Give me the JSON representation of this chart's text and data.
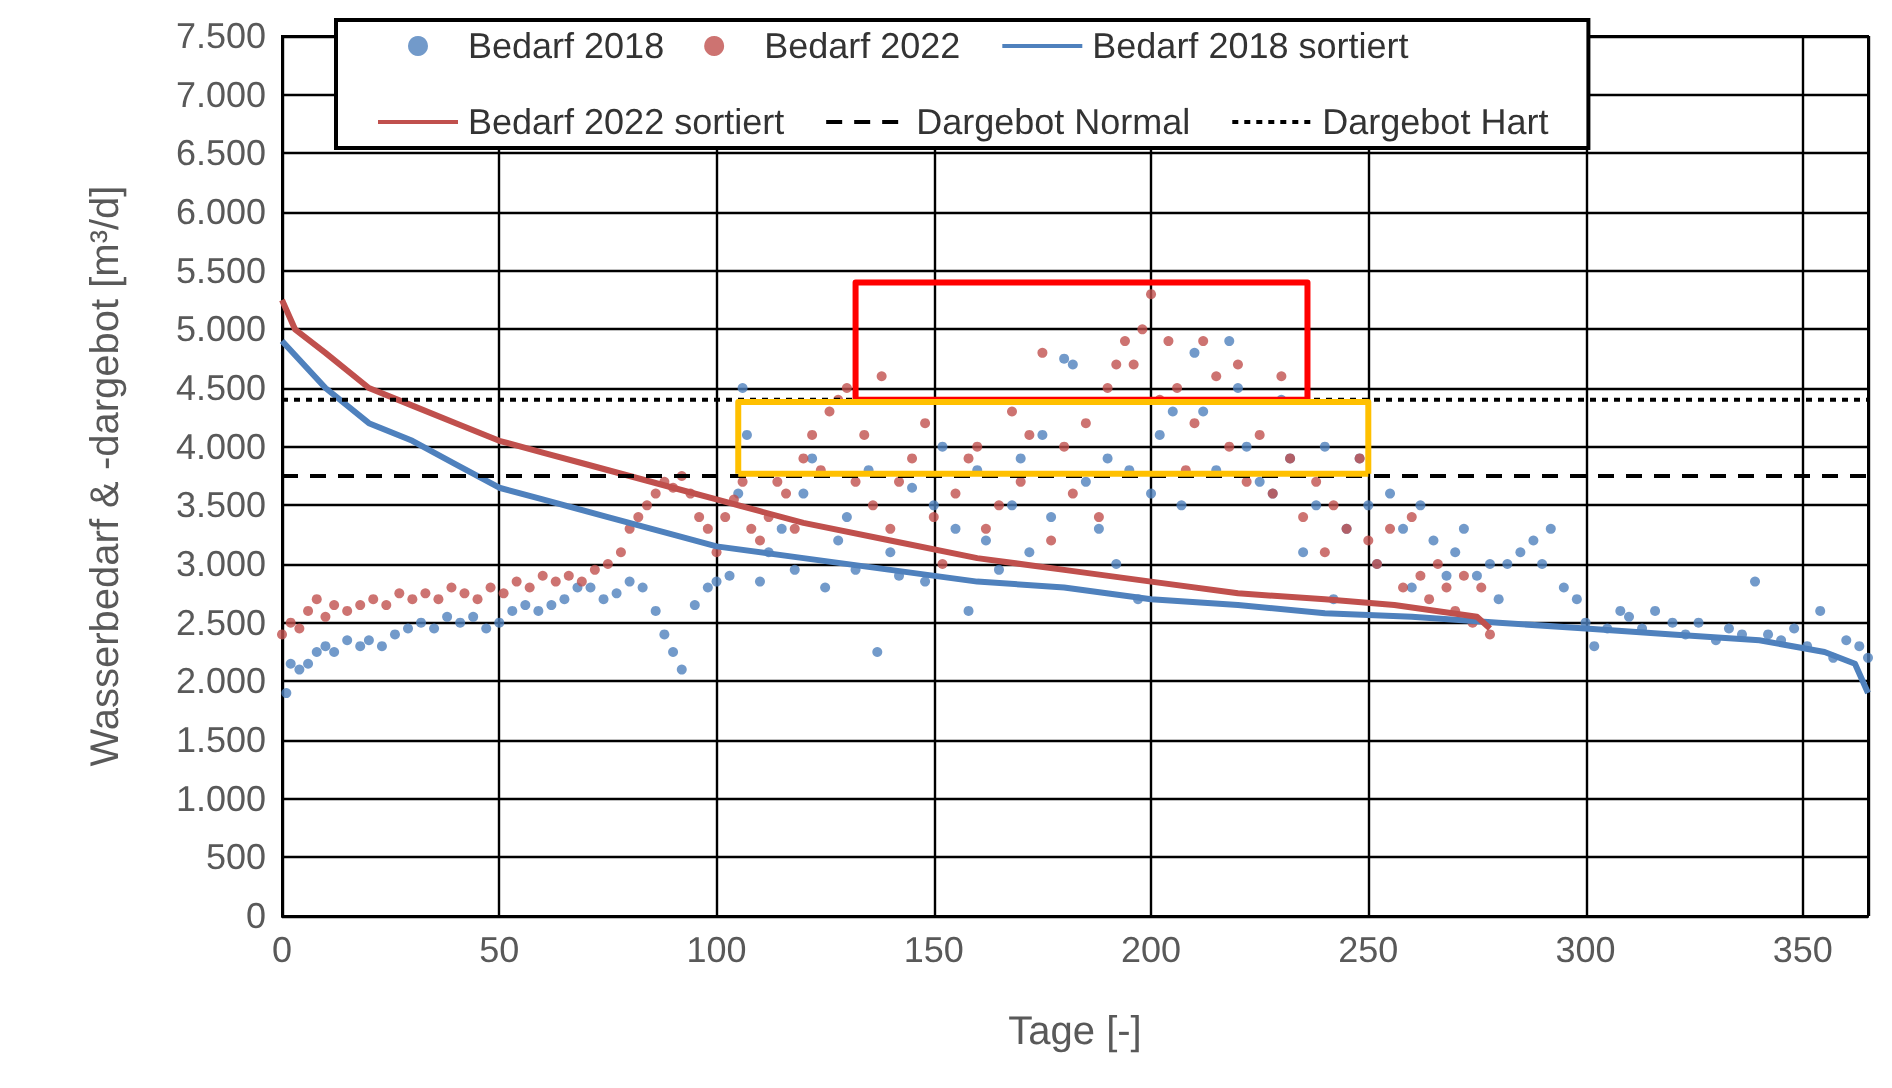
{
  "chart_data": {
    "type": "scatter",
    "xlabel": "Tage [-]",
    "ylabel": "Wasserbedarf & -dargebot [m³/d]",
    "xlim": [
      0,
      365
    ],
    "xticks": [
      0,
      50,
      100,
      150,
      200,
      250,
      300,
      350
    ],
    "ylim": [
      0,
      7500
    ],
    "yticks": [
      0,
      500,
      {
        "value": 1000,
        "label": "1.000"
      },
      {
        "value": 1500,
        "label": "1.500"
      },
      {
        "value": 2000,
        "label": "2.000"
      },
      {
        "value": 2500,
        "label": "2.500"
      },
      {
        "value": 3000,
        "label": "3.000"
      },
      {
        "value": 3500,
        "label": "3.500"
      },
      {
        "value": 4000,
        "label": "4.000"
      },
      {
        "value": 4500,
        "label": "4.500"
      },
      {
        "value": 5000,
        "label": "5.000"
      },
      {
        "value": 5500,
        "label": "5.500"
      },
      {
        "value": 6000,
        "label": "6.000"
      },
      {
        "value": 6500,
        "label": "6.500"
      },
      {
        "value": 7000,
        "label": "7.000"
      },
      {
        "value": 7500,
        "label": "7.500"
      }
    ],
    "grid": true,
    "legend": "top",
    "series": [
      {
        "name": "Bedarf 2018",
        "marker": "circle",
        "color": "#4f81bd",
        "x": [
          1,
          2,
          4,
          6,
          8,
          10,
          12,
          15,
          18,
          20,
          23,
          26,
          29,
          32,
          35,
          38,
          41,
          44,
          47,
          50,
          53,
          56,
          59,
          62,
          65,
          68,
          71,
          74,
          77,
          80,
          83,
          86,
          88,
          90,
          92,
          95,
          98,
          100,
          103,
          105,
          106,
          107,
          110,
          112,
          115,
          118,
          120,
          122,
          125,
          128,
          130,
          132,
          135,
          137,
          140,
          142,
          145,
          148,
          150,
          152,
          155,
          158,
          160,
          162,
          165,
          168,
          170,
          172,
          175,
          177,
          180,
          182,
          185,
          188,
          190,
          192,
          195,
          197,
          200,
          202,
          205,
          207,
          210,
          212,
          215,
          218,
          220,
          222,
          225,
          228,
          230,
          232,
          235,
          238,
          240,
          242,
          245,
          248,
          250,
          252,
          255,
          258,
          260,
          262,
          265,
          268,
          270,
          272,
          275,
          278,
          280,
          282,
          285,
          288,
          290,
          292,
          295,
          298,
          300,
          302,
          305,
          308,
          310,
          313,
          316,
          320,
          323,
          326,
          330,
          333,
          336,
          339,
          342,
          345,
          348,
          351,
          354,
          357,
          360,
          363,
          365
        ],
        "values": [
          1900,
          2150,
          2100,
          2150,
          2250,
          2300,
          2250,
          2350,
          2300,
          2350,
          2300,
          2400,
          2450,
          2500,
          2450,
          2550,
          2500,
          2550,
          2450,
          2500,
          2600,
          2650,
          2600,
          2650,
          2700,
          2800,
          2800,
          2700,
          2750,
          2850,
          2800,
          2600,
          2400,
          2250,
          2100,
          2650,
          2800,
          2850,
          2900,
          3600,
          4500,
          4100,
          2850,
          3100,
          3300,
          2950,
          3600,
          3900,
          2800,
          3200,
          3400,
          2950,
          3800,
          2250,
          3100,
          2900,
          3650,
          2850,
          3500,
          4000,
          3300,
          2600,
          3800,
          3200,
          2950,
          3500,
          3900,
          3100,
          4100,
          3400,
          4750,
          4700,
          3700,
          3300,
          3900,
          3000,
          3800,
          2700,
          3600,
          4100,
          4300,
          3500,
          4800,
          4300,
          3800,
          4900,
          4500,
          4000,
          3700,
          3600,
          4400,
          3900,
          3100,
          3500,
          4000,
          2700,
          3300,
          3900,
          3500,
          3000,
          3600,
          3300,
          2800,
          3500,
          3200,
          2900,
          3100,
          3300,
          2900,
          3000,
          2700,
          3000,
          3100,
          3200,
          3000,
          3300,
          2800,
          2700,
          2500,
          2300,
          2450,
          2600,
          2550,
          2450,
          2600,
          2500,
          2400,
          2500,
          2350,
          2450,
          2400,
          2850,
          2400,
          2350,
          2450,
          2300,
          2600,
          2200,
          2350,
          2300,
          2200
        ]
      },
      {
        "name": "Bedarf 2022",
        "marker": "circle",
        "color": "#c0504d",
        "x": [
          0,
          2,
          4,
          6,
          8,
          10,
          12,
          15,
          18,
          21,
          24,
          27,
          30,
          33,
          36,
          39,
          42,
          45,
          48,
          51,
          54,
          57,
          60,
          63,
          66,
          69,
          72,
          75,
          78,
          80,
          82,
          84,
          86,
          88,
          90,
          92,
          94,
          96,
          98,
          100,
          102,
          104,
          106,
          108,
          110,
          112,
          114,
          116,
          118,
          120,
          122,
          124,
          126,
          128,
          130,
          132,
          134,
          136,
          138,
          140,
          142,
          145,
          148,
          150,
          152,
          155,
          158,
          160,
          162,
          165,
          168,
          170,
          172,
          175,
          177,
          180,
          182,
          185,
          188,
          190,
          192,
          194,
          196,
          198,
          200,
          202,
          204,
          206,
          208,
          210,
          212,
          215,
          218,
          220,
          222,
          225,
          228,
          230,
          232,
          235,
          238,
          240,
          242,
          245,
          248,
          250,
          252,
          255,
          258,
          260,
          262,
          264,
          266,
          268,
          270,
          272,
          274,
          276,
          278
        ],
        "values": [
          2400,
          2500,
          2450,
          2600,
          2700,
          2550,
          2650,
          2600,
          2650,
          2700,
          2650,
          2750,
          2700,
          2750,
          2700,
          2800,
          2750,
          2700,
          2800,
          2750,
          2850,
          2800,
          2900,
          2850,
          2900,
          2850,
          2950,
          3000,
          3100,
          3300,
          3400,
          3500,
          3600,
          3700,
          3650,
          3750,
          3600,
          3400,
          3300,
          3100,
          3400,
          3550,
          3700,
          3300,
          3200,
          3400,
          3700,
          3600,
          3300,
          3900,
          4100,
          3800,
          4300,
          4400,
          4500,
          3700,
          4100,
          3500,
          4600,
          3300,
          3700,
          3900,
          4200,
          3400,
          3000,
          3600,
          3900,
          4000,
          3300,
          3500,
          4300,
          3700,
          4100,
          4800,
          3200,
          4000,
          3600,
          4200,
          3400,
          4500,
          4700,
          4900,
          4700,
          5000,
          5300,
          4400,
          4900,
          4500,
          3800,
          4200,
          4900,
          4600,
          4000,
          4700,
          3700,
          4100,
          3600,
          4600,
          3900,
          3400,
          3700,
          3100,
          3500,
          3300,
          3900,
          3200,
          3000,
          3300,
          2800,
          3400,
          2900,
          2700,
          3000,
          2800,
          2600,
          2900,
          2500,
          2800,
          2400
        ]
      },
      {
        "name": "Bedarf 2018 sortiert",
        "type": "line",
        "marker": "none",
        "line_style": "solid",
        "color": "#4f81bd",
        "x": [
          0,
          10,
          20,
          30,
          40,
          50,
          60,
          75,
          90,
          100,
          120,
          140,
          160,
          180,
          200,
          220,
          240,
          260,
          280,
          300,
          320,
          340,
          355,
          362,
          365
        ],
        "values": [
          4900,
          4500,
          4200,
          4050,
          3850,
          3650,
          3550,
          3400,
          3250,
          3150,
          3050,
          2950,
          2850,
          2800,
          2700,
          2650,
          2580,
          2550,
          2500,
          2450,
          2400,
          2350,
          2250,
          2150,
          1900
        ]
      },
      {
        "name": "Bedarf 2022 sortiert",
        "type": "line",
        "marker": "none",
        "line_style": "solid",
        "color": "#c0504d",
        "x": [
          0,
          3,
          10,
          20,
          30,
          40,
          50,
          60,
          70,
          80,
          90,
          100,
          110,
          120,
          140,
          160,
          180,
          200,
          220,
          240,
          256,
          275,
          278
        ],
        "values": [
          5250,
          5000,
          4800,
          4500,
          4350,
          4200,
          4050,
          3950,
          3850,
          3750,
          3650,
          3550,
          3450,
          3350,
          3200,
          3050,
          2950,
          2850,
          2750,
          2700,
          2650,
          2550,
          2450
        ]
      },
      {
        "name": "Dargebot Normal",
        "type": "line",
        "marker": "none",
        "line_style": "dashed",
        "color": "#000000",
        "x": [
          0,
          365
        ],
        "values": [
          3750,
          3750
        ]
      },
      {
        "name": "Dargebot Hart",
        "type": "line",
        "marker": "none",
        "line_style": "dotted",
        "color": "#000000",
        "x": [
          0,
          365
        ],
        "values": [
          4400,
          4400
        ]
      },
      {
        "type": "line",
        "marker": "none",
        "line_style": "solid",
        "color": "#ff0000",
        "x": [
          132,
          132,
          236,
          236
        ],
        "values": [
          4400,
          5400,
          5400,
          4400
        ]
      },
      {
        "type": "line",
        "marker": "none",
        "line_style": "solid",
        "color": "#ff0000",
        "x": [
          132,
          236
        ],
        "values": [
          4400,
          4400
        ]
      },
      {
        "type": "line",
        "marker": "none",
        "line_style": "solid",
        "color": "#ffc000",
        "x": [
          105,
          105,
          250,
          250
        ],
        "values": [
          3770,
          4380,
          4380,
          3770
        ]
      },
      {
        "type": "line",
        "marker": "none",
        "line_style": "solid",
        "color": "#ffc000",
        "x": [
          105,
          250
        ],
        "values": [
          3770,
          3770
        ]
      }
    ]
  }
}
